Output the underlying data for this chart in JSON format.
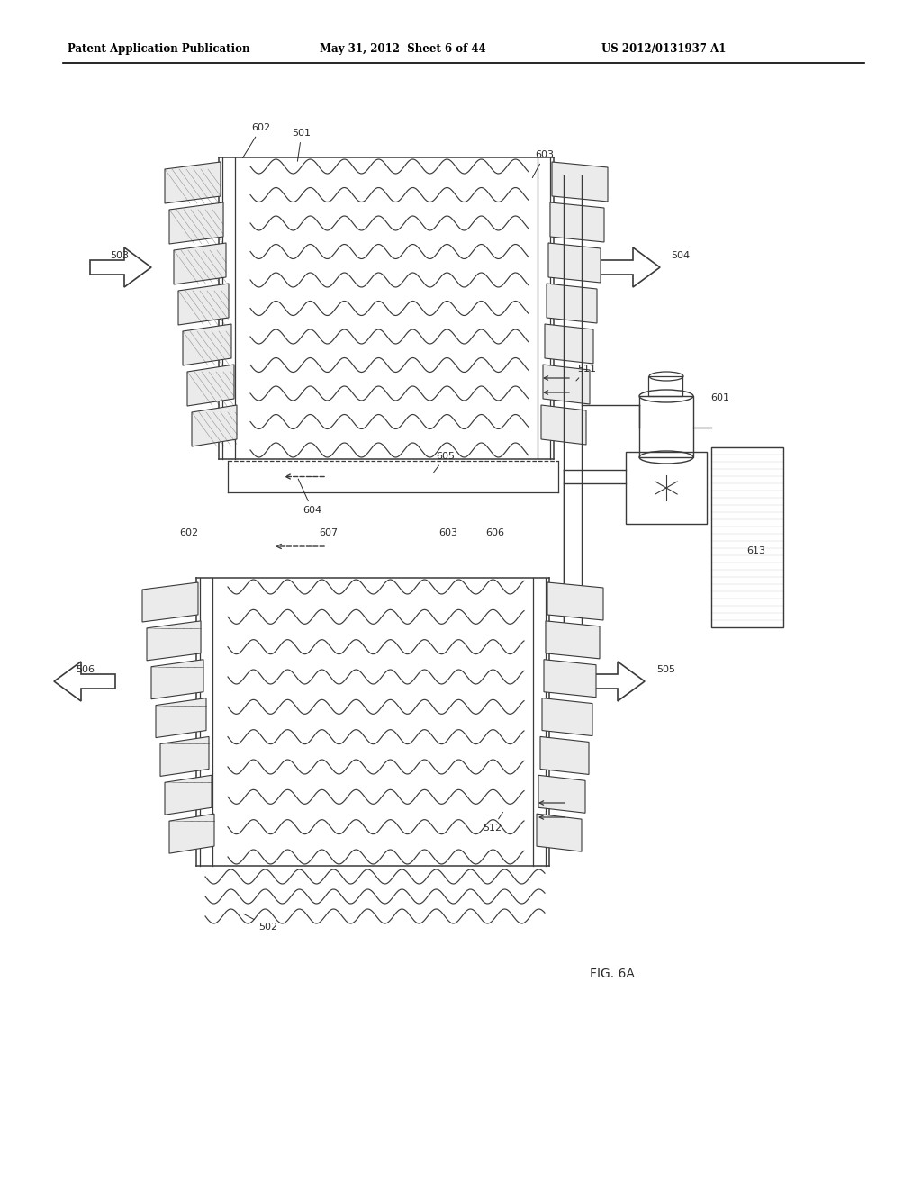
{
  "title_left": "Patent Application Publication",
  "title_center": "May 31, 2012  Sheet 6 of 44",
  "title_right": "US 2012/0131937 A1",
  "fig_label": "FIG. 6A",
  "bg_color": "#ffffff",
  "line_color": "#3a3a3a",
  "label_color": "#2a2a2a"
}
